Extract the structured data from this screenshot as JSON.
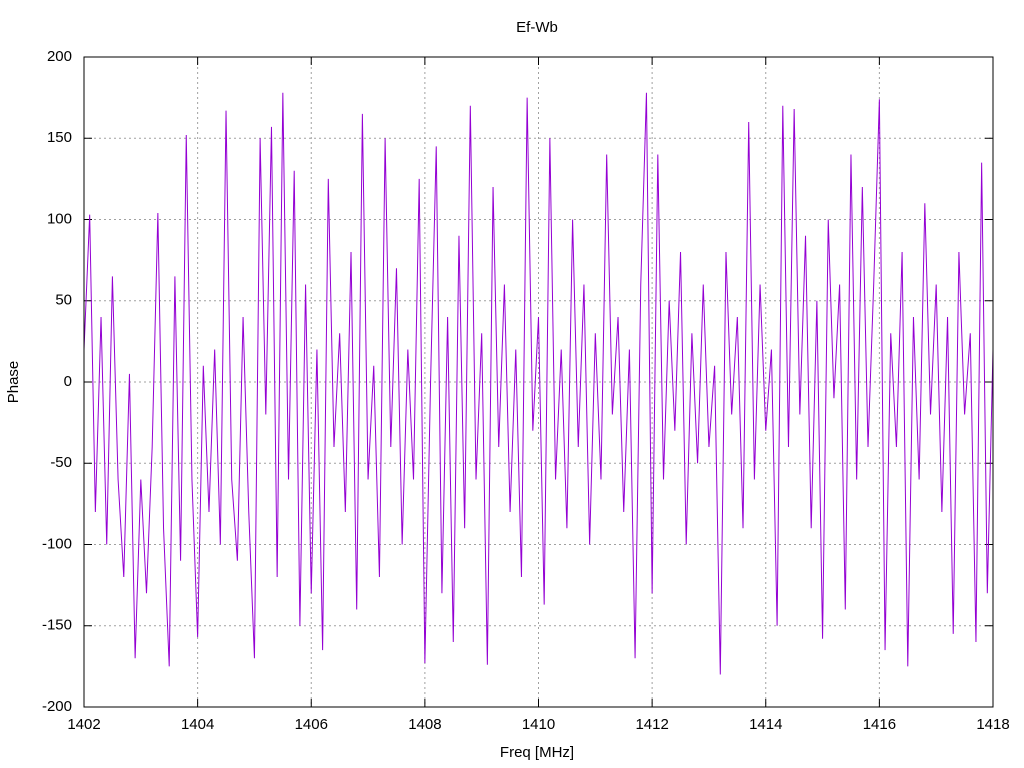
{
  "chart_data": {
    "type": "line",
    "title": "Ef-Wb",
    "x_label": "Freq [MHz]",
    "y_label": "Phase",
    "xlim": [
      1402,
      1418
    ],
    "xticks": [
      1402,
      1404,
      1406,
      1408,
      1410,
      1412,
      1414,
      1416,
      1418
    ],
    "ylim": [
      -200,
      200
    ],
    "yticks": [
      -200,
      -150,
      -100,
      -50,
      0,
      50,
      100,
      150,
      200
    ],
    "grid": true,
    "x": [
      1402.0,
      1402.1,
      1402.2,
      1402.3,
      1402.4,
      1402.5,
      1402.6,
      1402.7,
      1402.8,
      1402.9,
      1403.0,
      1403.1,
      1403.2,
      1403.3,
      1403.4,
      1403.5,
      1403.6,
      1403.7,
      1403.8,
      1403.9,
      1404.0,
      1404.1,
      1404.2,
      1404.3,
      1404.4,
      1404.5,
      1404.6,
      1404.7,
      1404.8,
      1404.9,
      1405.0,
      1405.1,
      1405.2,
      1405.3,
      1405.4,
      1405.5,
      1405.6,
      1405.7,
      1405.8,
      1405.9,
      1406.0,
      1406.1,
      1406.2,
      1406.3,
      1406.4,
      1406.5,
      1406.6,
      1406.7,
      1406.8,
      1406.9,
      1407.0,
      1407.1,
      1407.2,
      1407.3,
      1407.4,
      1407.5,
      1407.6,
      1407.7,
      1407.8,
      1407.9,
      1408.0,
      1408.1,
      1408.2,
      1408.3,
      1408.4,
      1408.5,
      1408.6,
      1408.7,
      1408.8,
      1408.9,
      1409.0,
      1409.1,
      1409.2,
      1409.3,
      1409.4,
      1409.5,
      1409.6,
      1409.7,
      1409.8,
      1409.9,
      1410.0,
      1410.1,
      1410.2,
      1410.3,
      1410.4,
      1410.5,
      1410.6,
      1410.7,
      1410.8,
      1410.9,
      1411.0,
      1411.1,
      1411.2,
      1411.3,
      1411.4,
      1411.5,
      1411.6,
      1411.7,
      1411.8,
      1411.9,
      1412.0,
      1412.1,
      1412.2,
      1412.3,
      1412.4,
      1412.5,
      1412.6,
      1412.7,
      1412.8,
      1412.9,
      1413.0,
      1413.1,
      1413.2,
      1413.3,
      1413.4,
      1413.5,
      1413.6,
      1413.7,
      1413.8,
      1413.9,
      1414.0,
      1414.1,
      1414.2,
      1414.3,
      1414.4,
      1414.5,
      1414.6,
      1414.7,
      1414.8,
      1414.9,
      1415.0,
      1415.1,
      1415.2,
      1415.3,
      1415.4,
      1415.5,
      1415.6,
      1415.7,
      1415.8,
      1415.9,
      1416.0,
      1416.1,
      1416.2,
      1416.3,
      1416.4,
      1416.5,
      1416.6,
      1416.7,
      1416.8,
      1416.9,
      1417.0,
      1417.1,
      1417.2,
      1417.3,
      1417.4,
      1417.5,
      1417.6,
      1417.7,
      1417.8,
      1417.9,
      1418.0
    ],
    "series": [
      {
        "color": "#9400d3",
        "values": [
          20,
          103,
          -80,
          40,
          -100,
          65,
          -60,
          -120,
          5,
          -170,
          -60,
          -130,
          -40,
          104,
          -90,
          -175,
          65,
          -110,
          152,
          -60,
          -157,
          10,
          -80,
          20,
          -100,
          167,
          -60,
          -110,
          40,
          -80,
          -170,
          150,
          -20,
          157,
          -120,
          178,
          -60,
          130,
          -150,
          60,
          -130,
          20,
          -165,
          125,
          -40,
          30,
          -80,
          80,
          -140,
          165,
          -60,
          10,
          -120,
          150,
          -40,
          70,
          -100,
          20,
          -60,
          125,
          -173,
          0,
          145,
          -130,
          40,
          -160,
          90,
          -90,
          170,
          -60,
          30,
          -174,
          120,
          -40,
          60,
          -80,
          20,
          -120,
          175,
          -30,
          40,
          -137,
          150,
          -60,
          20,
          -90,
          100,
          -40,
          60,
          -100,
          30,
          -60,
          140,
          -20,
          40,
          -80,
          20,
          -170,
          60,
          178,
          -130,
          140,
          -60,
          50,
          -30,
          80,
          -100,
          30,
          -50,
          60,
          -40,
          10,
          -180,
          80,
          -20,
          40,
          -90,
          160,
          -60,
          60,
          -30,
          20,
          -150,
          170,
          -40,
          168,
          -20,
          90,
          -90,
          50,
          -158,
          100,
          -10,
          60,
          -140,
          140,
          -60,
          120,
          -40,
          60,
          174,
          -165,
          30,
          -40,
          80,
          -175,
          40,
          -60,
          110,
          -20,
          60,
          -80,
          40,
          -155,
          80,
          -20,
          30,
          -160,
          135,
          -130,
          20
        ]
      }
    ]
  }
}
